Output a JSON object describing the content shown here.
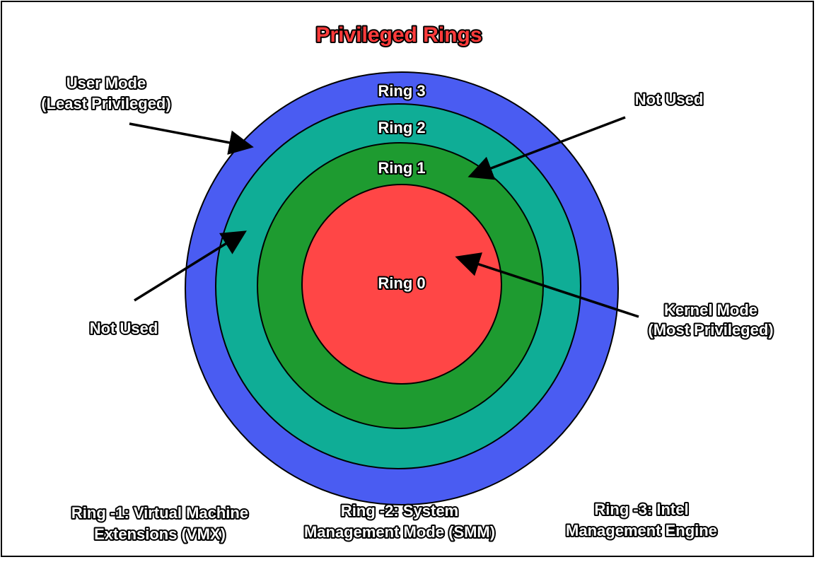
{
  "title": "Privileged Rings",
  "colors": {
    "ring3": "#4a5cf2",
    "ring2": "#0fad96",
    "ring1": "#1e9b30",
    "ring0": "#ff4646",
    "title": "#ff3b3b"
  },
  "rings": [
    {
      "label": "Ring 3"
    },
    {
      "label": "Ring 2"
    },
    {
      "label": "Ring 1"
    },
    {
      "label": "Ring 0"
    }
  ],
  "annotations": {
    "user_mode_line1": "User Mode",
    "user_mode_line2": "(Least Privileged)",
    "not_used_right": "Not Used",
    "not_used_left": "Not Used",
    "kernel_mode_line1": "Kernel Mode",
    "kernel_mode_line2": "(Most Privileged)"
  },
  "footer": {
    "vmx_line1": "Ring -1: Virtual Machine",
    "vmx_line2": "Extensions (VMX)",
    "smm_line1": "Ring -2: System",
    "smm_line2": "Management Mode (SMM)",
    "ime_line1": "Ring -3: Intel",
    "ime_line2": "Management Engine"
  }
}
